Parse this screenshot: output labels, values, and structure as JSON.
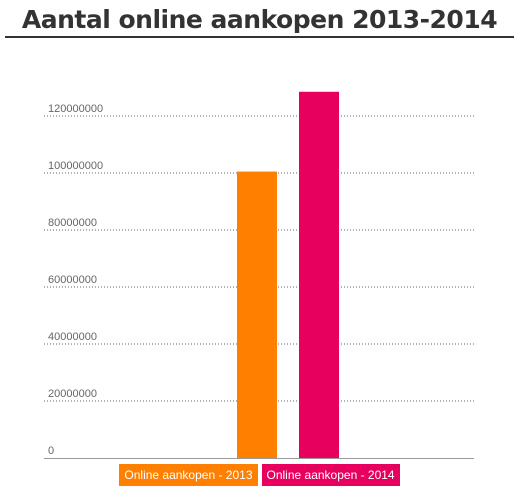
{
  "chart_data": {
    "type": "bar",
    "title": "Aantal online aankopen 2013-2014",
    "categories": [
      "Online aankopen - 2013",
      "Online aankopen - 2014"
    ],
    "values": [
      100500000,
      128500000
    ],
    "colors": [
      "#ff8000",
      "#e8005e"
    ],
    "ylim": [
      0,
      120000000
    ],
    "yticks": [
      "0",
      "20000000",
      "40000000",
      "60000000",
      "80000000",
      "100000000",
      "120000000"
    ],
    "ytick_values": [
      0,
      20000000,
      40000000,
      60000000,
      80000000,
      100000000,
      120000000
    ],
    "grid": true,
    "legend_position": "bottom"
  }
}
